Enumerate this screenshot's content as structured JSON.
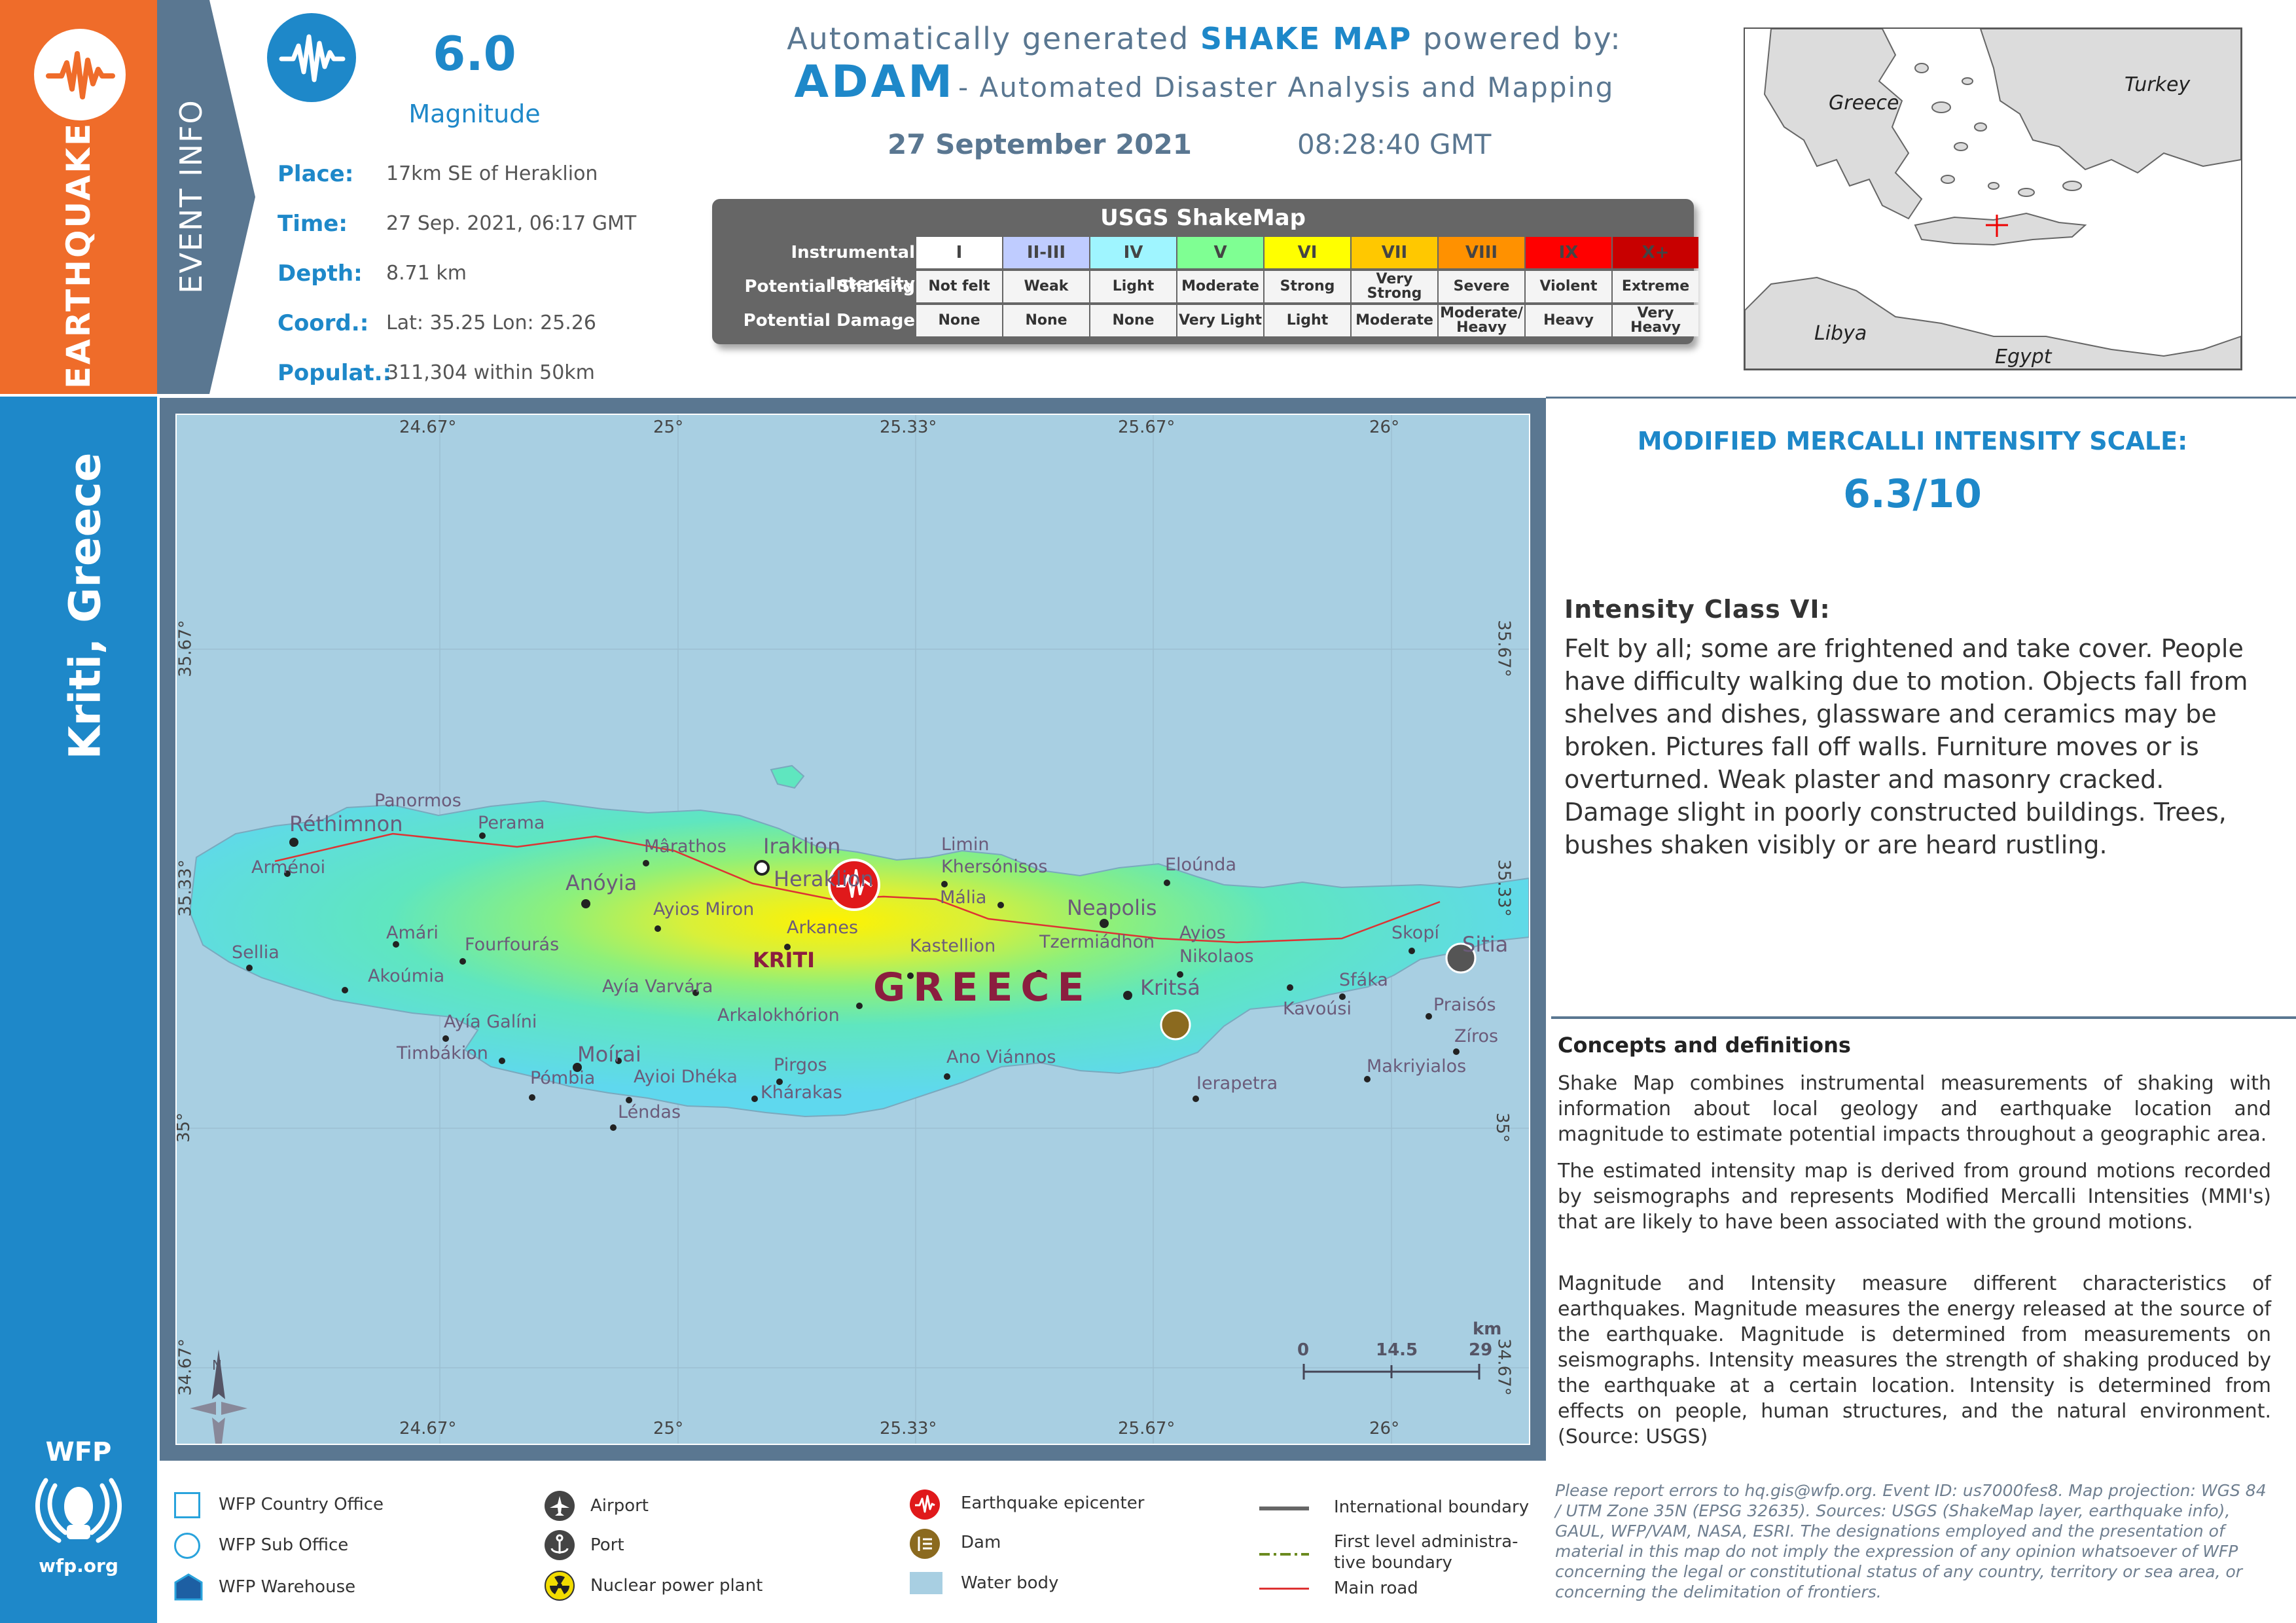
{
  "hazard_type": "EARTHQUAKE",
  "location_title": "Kriti, Greece",
  "event_info_label": "EVENT INFO",
  "magnitude": {
    "value": "6.0",
    "label": "Magnitude"
  },
  "event_info": [
    {
      "label": "Place:",
      "value": "17km SE of Heraklion"
    },
    {
      "label": "Time:",
      "value": "27 Sep. 2021, 06:17 GMT"
    },
    {
      "label": "Depth:",
      "value": "8.71 km"
    },
    {
      "label": "Coord.:",
      "value": "Lat: 35.25 Lon: 25.26"
    },
    {
      "label": "Populat.:",
      "value": "311,304 within 50km"
    }
  ],
  "header": {
    "line1_prefix": "Automatically generated",
    "line1_emph": "SHAKE MAP",
    "line1_suffix": "powered by:",
    "adam": "ADAM",
    "adam_suffix": "- Automated Disaster Analysis and Mapping",
    "date": "27 September 2021",
    "time": "08:28:40 GMT"
  },
  "shakemap_legend": {
    "title": "USGS ShakeMap",
    "row_labels": [
      "Instrumental Intensity",
      "Potential Shaking",
      "Potential Damage"
    ],
    "columns": [
      {
        "intensity": "I",
        "shaking": "Not felt",
        "damage": "None",
        "color": "#ffffff"
      },
      {
        "intensity": "II-III",
        "shaking": "Weak",
        "damage": "None",
        "color": "#bfccff"
      },
      {
        "intensity": "IV",
        "shaking": "Light",
        "damage": "None",
        "color": "#9ff5ff"
      },
      {
        "intensity": "V",
        "shaking": "Moderate",
        "damage": "Very Light",
        "color": "#7fff93"
      },
      {
        "intensity": "VI",
        "shaking": "Strong",
        "damage": "Light",
        "color": "#ffff00"
      },
      {
        "intensity": "VII",
        "shaking": "Very Strong",
        "damage": "Moderate",
        "color": "#ffc800"
      },
      {
        "intensity": "VIII",
        "shaking": "Severe",
        "damage": "Moderate/ Heavy",
        "color": "#ff9100"
      },
      {
        "intensity": "IX",
        "shaking": "Violent",
        "damage": "Heavy",
        "color": "#ff0000"
      },
      {
        "intensity": "X+",
        "shaking": "Extreme",
        "damage": "Very Heavy",
        "color": "#c80000"
      }
    ]
  },
  "inset_map": {
    "labels": [
      "Greece",
      "Turkey",
      "Libya",
      "Egypt"
    ]
  },
  "mmi_scale": {
    "title": "MODIFIED MERCALLI INTENSITY SCALE:",
    "value": "6.3/10",
    "class_title": "Intensity Class VI:",
    "class_description": "Felt by all; some are frightened and take cover. People have difficulty walking due to motion. Objects fall from shelves and dishes, glassware and ceramics may be broken. Pictures fall off walls. Furniture moves or is overturned. Weak plaster and masonry cracked. Damage slight in poorly constructed buildings. Trees, bushes shaken visibly or are heard rustling."
  },
  "concepts": {
    "title": "Concepts and definitions",
    "paragraphs": [
      "Shake Map combines instrumental measurements of shaking with information about local geology and earthquake location and magnitude to estimate potential impacts throughout a geographic area.",
      "The estimated intensity map is derived from ground motions recorded by seismographs and represents Modified Mercalli Intensities (MMI's) that are likely to have been associated with the ground motions.",
      "Magnitude and Intensity measure different characteristics of earthquakes. Magnitude measures the energy released at the source of the earthquake. Magnitude is determined from measurements on seismographs. Intensity measures the strength of shaking produced by the earthquake at a certain location. Intensity is determined from effects on people, human structures, and the natural environment. (Source: USGS)"
    ]
  },
  "map": {
    "lon_ticks": [
      "24.67°",
      "25°",
      "25.33°",
      "25.67°",
      "26°"
    ],
    "lat_ticks": [
      "35.67°",
      "35.33°",
      "35°",
      "34.67°"
    ],
    "region_label": "KRITI",
    "country_label": "GREECE",
    "places": [
      "Réthimnon",
      "Panormos",
      "Perama",
      "Mârathos",
      "Iraklion",
      "Heraklion",
      "Limin Khersónisos",
      "Mália",
      "Eloúnda",
      "Arménoi",
      "Anóyia",
      "Ayios Miron",
      "Arkanes",
      "Neapolis",
      "Ayios Nikolaos",
      "Amári",
      "Fourfourás",
      "Kastellion",
      "Tzermiádhon",
      "Skopí",
      "Sitia",
      "Sellia",
      "Akoúmia",
      "Ayía Varvára",
      "Kritsá",
      "Sfáka",
      "Arkalokhórion",
      "Kavoúsi",
      "Praisós",
      "Ayía Galíni",
      "Timbákion",
      "Moírai",
      "Pirgos",
      "Ano Viánnos",
      "Zíros",
      "Makriyialos",
      "Pómbia",
      "Ayioi Dhéka",
      "Khárakas",
      "Ierapetra",
      "Léndas"
    ],
    "scale_bar": {
      "unit": "km",
      "ticks": [
        "0",
        "14.5",
        "29"
      ]
    },
    "north": "N"
  },
  "wfp": {
    "name": "WFP",
    "url": "wfp.org"
  },
  "legend": [
    {
      "icon": "wfp-country-office-icon",
      "label": "WFP Country Office"
    },
    {
      "icon": "wfp-sub-office-icon",
      "label": "WFP Sub Office"
    },
    {
      "icon": "wfp-warehouse-icon",
      "label": "WFP Warehouse"
    },
    {
      "icon": "airport-icon",
      "label": "Airport"
    },
    {
      "icon": "port-icon",
      "label": "Port"
    },
    {
      "icon": "nuclear-power-plant-icon",
      "label": "Nuclear power plant"
    },
    {
      "icon": "earthquake-epicenter-icon",
      "label": "Earthquake epicenter"
    },
    {
      "icon": "dam-icon",
      "label": "Dam"
    },
    {
      "icon": "water-body-icon",
      "label": "Water body"
    },
    {
      "icon": "international-boundary-icon",
      "label": "International boundary"
    },
    {
      "icon": "admin-boundary-icon",
      "label": "First level administrative boundary",
      "line1": "First level administra-",
      "line2": "tive boundary"
    },
    {
      "icon": "main-road-icon",
      "label": "Main road"
    }
  ],
  "disclaimer": "Please report errors to hq.gis@wfp.org. Event ID: us7000fes8. Map projection: WGS 84 / UTM Zone 35N (EPSG 32635). Sources: USGS (ShakeMap layer, earthquake info), GAUL, WFP/VAM, NASA, ESRI. The designations employed and the presentation of material in this map do not imply the expression of any opinion whatsoever of WFP concerning the legal or constitutional status of any country, territory or sea area, or concerning the delimitation of frontiers.",
  "colors": {
    "orange": "#ef6c2a",
    "blue": "#1e88c9",
    "slate": "#5a7791",
    "sea": "#a8cfe2"
  }
}
